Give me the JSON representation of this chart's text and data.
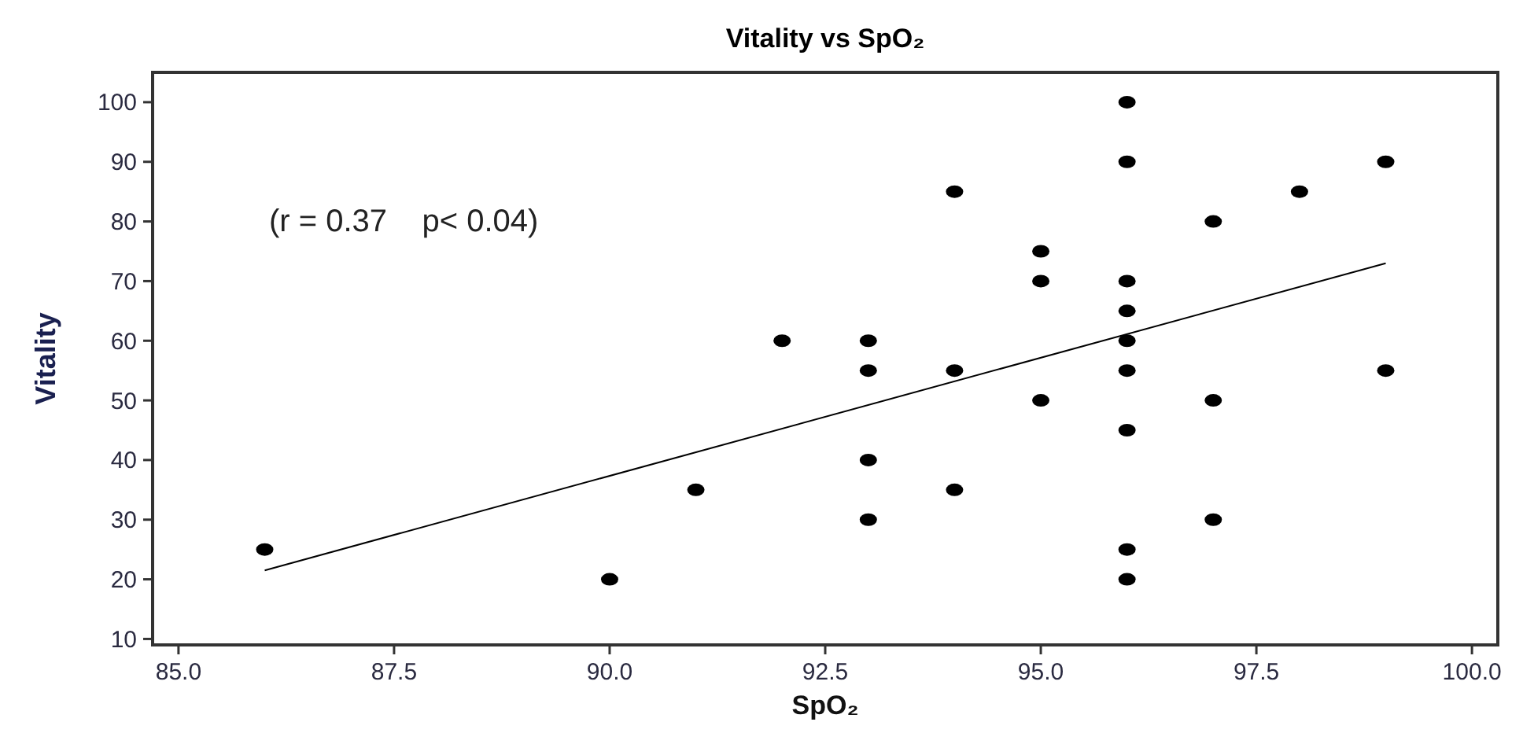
{
  "chart_data": {
    "type": "scatter",
    "title": "Vitality vs SpO₂",
    "xlabel": "SpO₂",
    "ylabel": "Vitality",
    "annotations": [
      "(r = 0.37    p< 0.04)"
    ],
    "x": [
      86,
      90,
      91,
      92,
      93,
      93,
      93,
      93,
      94,
      94,
      94,
      95,
      95,
      95,
      96,
      96,
      96,
      96,
      96,
      96,
      96,
      96,
      96,
      97,
      97,
      97,
      98,
      99,
      99
    ],
    "series": [
      {
        "color": "#000000",
        "marker": "circle",
        "values": [
          25,
          20,
          35,
          60,
          60,
          55,
          40,
          30,
          85,
          55,
          35,
          75,
          70,
          50,
          100,
          90,
          70,
          65,
          60,
          55,
          45,
          25,
          20,
          80,
          50,
          30,
          85,
          90,
          55
        ]
      },
      {
        "type": "line",
        "color": "#000000",
        "x": [
          86,
          99
        ],
        "values": [
          21.5,
          73
        ]
      }
    ],
    "grid": false,
    "xlim": [
      84.7,
      100.3
    ],
    "ylim": [
      9,
      105
    ],
    "xticks": [
      {
        "value": 85,
        "label": "85.0"
      },
      {
        "value": 87.5,
        "label": "87.5"
      },
      {
        "value": 90,
        "label": "90.0"
      },
      {
        "value": 92.5,
        "label": "92.5"
      },
      {
        "value": 95,
        "label": "95.0"
      },
      {
        "value": 97.5,
        "label": "97.5"
      },
      {
        "value": 100,
        "label": "100.0"
      }
    ],
    "yticks": [
      10,
      20,
      30,
      40,
      50,
      60,
      70,
      80,
      90,
      100
    ]
  }
}
